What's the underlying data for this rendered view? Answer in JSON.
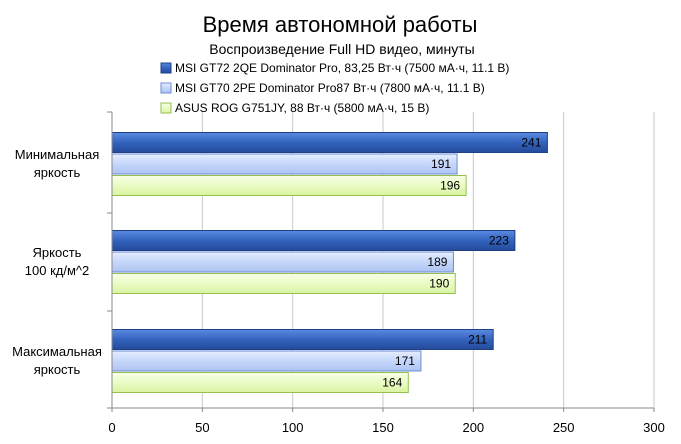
{
  "chart_data": {
    "type": "bar",
    "orientation": "horizontal",
    "title": "Время автономной работы",
    "subtitle": "Воспроизведение  Full HD видео, минуты",
    "categories": [
      [
        "Минимальная",
        "яркость"
      ],
      [
        "Яркость",
        "100 кд/м^2"
      ],
      [
        "Максимальная",
        "яркость"
      ]
    ],
    "series": [
      {
        "name": "MSI GT72 2QE Dominator Pro, 83,25 Вт·ч (7500 мА·ч, 11.1 В)",
        "values": [
          241,
          223,
          211
        ],
        "fill": "#3a6cc6",
        "stroke": "#1f3f86",
        "style": "gradient-dark"
      },
      {
        "name": "MSI GT70 2PE Dominator Pro87 Вт·ч (7800 мА·ч, 11.1 В)",
        "values": [
          191,
          189,
          171
        ],
        "fill": "#c8d8fb",
        "stroke": "#6d8ed1",
        "style": "gradient-light"
      },
      {
        "name": "ASUS ROG G751JY, 88 Вт·ч (5800 мА·ч, 15 В)",
        "values": [
          196,
          190,
          164
        ],
        "fill": "#ecfcc8",
        "stroke": "#95bf4e",
        "style": "gradient-green"
      }
    ],
    "xlim": [
      0,
      300
    ],
    "xticks": [
      0,
      50,
      100,
      150,
      200,
      250,
      300
    ],
    "grid": true,
    "legend_position": "top"
  }
}
